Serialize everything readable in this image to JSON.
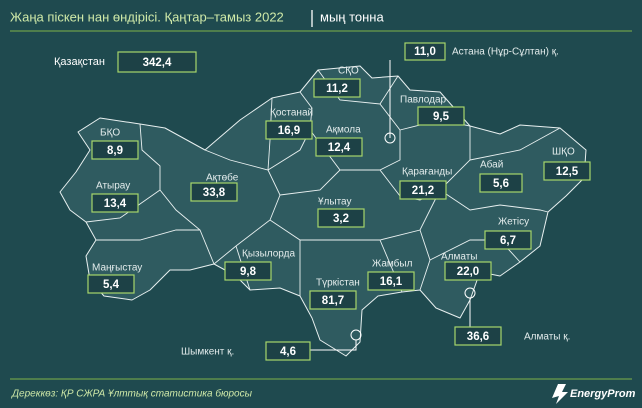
{
  "header": {
    "title": "Жаңа піскен нан өндірісі. Қаңтар–тамыз 2022",
    "unit": "мың тонна"
  },
  "total": {
    "name": "Қазақстан",
    "value": "342,4"
  },
  "regions": [
    {
      "name": "Астана (Нұр-Сұлтан) қ.",
      "value": "11,0"
    },
    {
      "name": "СҚО",
      "value": "11,2"
    },
    {
      "name": "Павлодар",
      "value": "9,5"
    },
    {
      "name": "Қостанай",
      "value": "16,9"
    },
    {
      "name": "Ақмола",
      "value": "12,4"
    },
    {
      "name": "БҚО",
      "value": "8,9"
    },
    {
      "name": "Абай",
      "value": "5,6"
    },
    {
      "name": "ШҚО",
      "value": "12,5"
    },
    {
      "name": "Қарағанды",
      "value": "21,2"
    },
    {
      "name": "Атырау",
      "value": "13,4"
    },
    {
      "name": "Ақтөбе",
      "value": "33,8"
    },
    {
      "name": "Ұлытау",
      "value": "3,2"
    },
    {
      "name": "Жетісу",
      "value": "6,7"
    },
    {
      "name": "Қызылорда",
      "value": "9,8"
    },
    {
      "name": "Жамбыл",
      "value": "16,1"
    },
    {
      "name": "Алматы",
      "value": "22,0"
    },
    {
      "name": "Маңғыстау",
      "value": "5,4"
    },
    {
      "name": "Түркістан",
      "value": "81,7"
    },
    {
      "name": "Алматы қ.",
      "value": "36,6"
    },
    {
      "name": "Шымкент қ.",
      "value": "4,6"
    }
  ],
  "footer": {
    "source": "Дереккөз: ҚР СЖРА Ұлттық статистика бюросы",
    "brand": "EnergyProm"
  }
}
